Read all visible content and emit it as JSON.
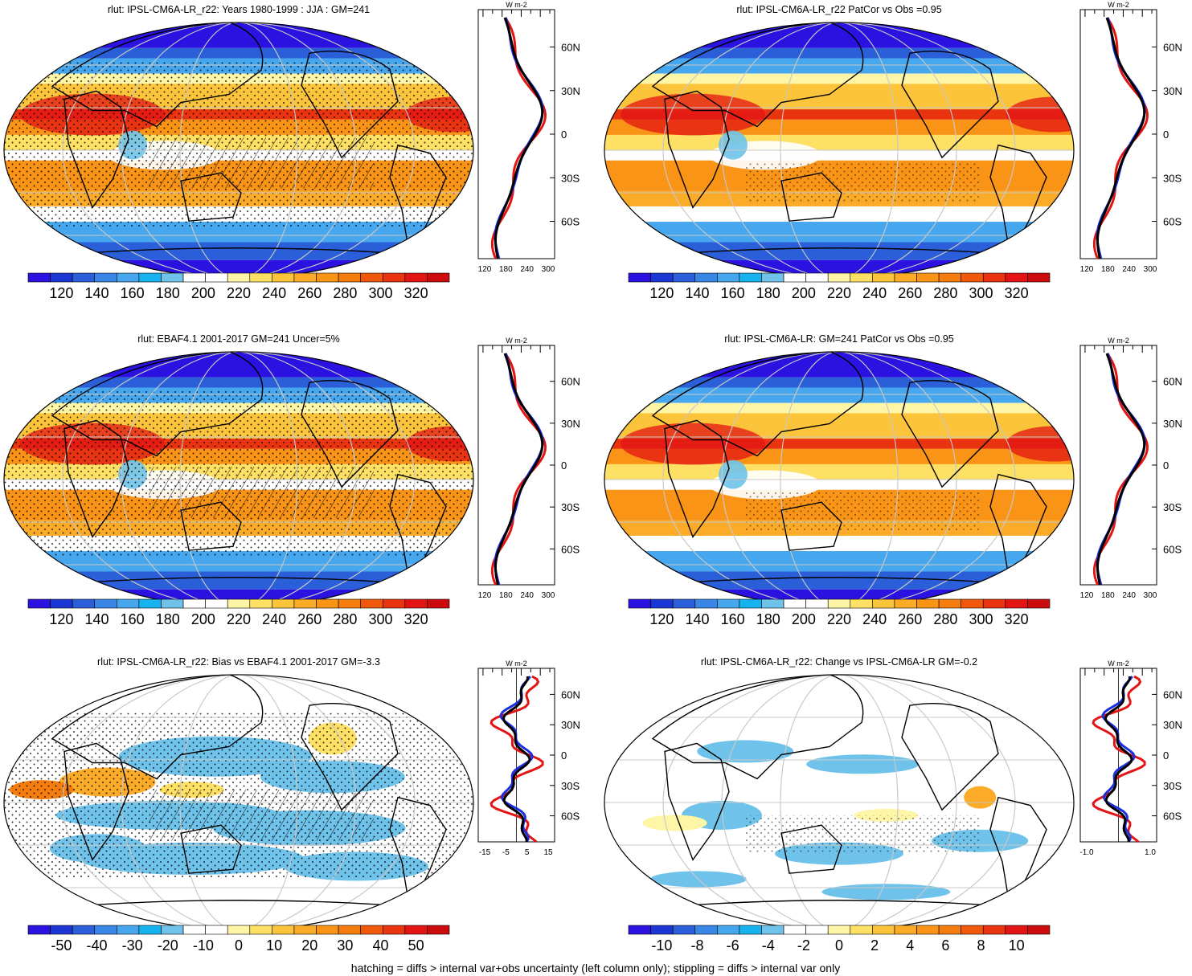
{
  "panels": [
    {
      "id": "model-jja",
      "title": "rlut: IPSL-CM6A-LR_r22: Years 1980-1999 : JJA : GM=241",
      "colorbar_labels": [
        "120",
        "140",
        "160",
        "180",
        "200",
        "220",
        "240",
        "260",
        "280",
        "300",
        "320"
      ],
      "profile_xticks": [
        "120",
        "180",
        "240",
        "300"
      ],
      "profile_units": "W m-2",
      "lat_labels": [
        "60N",
        "30N",
        "0",
        "30S",
        "60S"
      ]
    },
    {
      "id": "model-patcor",
      "title": "rlut: IPSL-CM6A-LR_r22 PatCor vs Obs =0.95",
      "colorbar_labels": [
        "120",
        "140",
        "160",
        "180",
        "200",
        "220",
        "240",
        "260",
        "280",
        "300",
        "320"
      ],
      "profile_xticks": [
        "120",
        "180",
        "240",
        "300"
      ],
      "profile_units": "W m-2",
      "lat_labels": [
        "60N",
        "30N",
        "0",
        "30S",
        "60S"
      ]
    },
    {
      "id": "obs-ebaf",
      "title": "rlut: EBAF4.1 2001-2017 GM=241 Uncer=5%",
      "colorbar_labels": [
        "120",
        "140",
        "160",
        "180",
        "200",
        "220",
        "240",
        "260",
        "280",
        "300",
        "320"
      ],
      "profile_xticks": [
        "120",
        "180",
        "240",
        "300"
      ],
      "profile_units": "W m-2",
      "lat_labels": [
        "60N",
        "30N",
        "0",
        "30S",
        "60S"
      ]
    },
    {
      "id": "ensemble-mean",
      "title": "rlut: IPSL-CM6A-LR: GM=241 PatCor vs Obs =0.95",
      "colorbar_labels": [
        "120",
        "140",
        "160",
        "180",
        "200",
        "220",
        "240",
        "260",
        "280",
        "300",
        "320"
      ],
      "profile_xticks": [
        "120",
        "180",
        "240",
        "300"
      ],
      "profile_units": "W m-2",
      "lat_labels": [
        "60N",
        "30N",
        "0",
        "30S",
        "60S"
      ]
    },
    {
      "id": "bias",
      "title": "rlut: IPSL-CM6A-LR_r22: Bias vs EBAF4.1 2001-2017 GM=-3.3",
      "colorbar_labels": [
        "-50",
        "-40",
        "-30",
        "-20",
        "-10",
        "0",
        "10",
        "20",
        "30",
        "40",
        "50"
      ],
      "profile_xticks": [
        "-15",
        "-5",
        "5",
        "15"
      ],
      "profile_units": "W m-2",
      "lat_labels": [
        "60N",
        "30N",
        "0",
        "30S",
        "60S"
      ]
    },
    {
      "id": "change",
      "title": "rlut: IPSL-CM6A-LR_r22: Change vs IPSL-CM6A-LR GM=-0.2",
      "colorbar_labels": [
        "-10",
        "-8",
        "-6",
        "-4",
        "-2",
        "0",
        "2",
        "4",
        "6",
        "8",
        "10"
      ],
      "profile_xticks": [
        "-1.0",
        "1.0"
      ],
      "profile_units": "W m-2",
      "lat_labels": [
        "60N",
        "30N",
        "0",
        "30S",
        "60S"
      ]
    }
  ],
  "colors": {
    "scale": [
      "#2b12e0",
      "#1c36d4",
      "#2a5fd9",
      "#3a86e6",
      "#46a7ee",
      "#17b2f0",
      "#6fc3ea",
      "#ffffff",
      "#ffffff",
      "#fff5a6",
      "#fde064",
      "#fcc43a",
      "#fbab28",
      "#f99417",
      "#f57c0e",
      "#f0580c",
      "#ea3410",
      "#e31414",
      "#cc0c0c"
    ],
    "ocean_warm": "#f7a73a",
    "land": "#000000",
    "line_model": "#000000",
    "line_obs": "#e31414",
    "line_ens": "#1c2fe0"
  },
  "footer": "hatching = diffs > internal var+obs uncertainty (left column only); stippling = diffs > internal var only"
}
